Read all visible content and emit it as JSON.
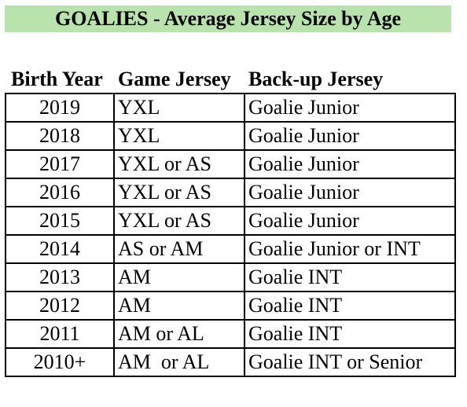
{
  "header": {
    "title": "GOALIES - Average Jersey Size by Age"
  },
  "table": {
    "columns": [
      "Birth Year",
      "Game Jersey",
      "Back-up Jersey"
    ],
    "rows": [
      [
        "2019",
        "YXL",
        "Goalie Junior"
      ],
      [
        "2018",
        "YXL",
        "Goalie Junior"
      ],
      [
        "2017",
        "YXL or AS",
        "Goalie Junior"
      ],
      [
        "2016",
        "YXL or AS",
        "Goalie Junior"
      ],
      [
        "2015",
        "YXL or AS",
        "Goalie Junior"
      ],
      [
        "2014",
        "AS or AM",
        "Goalie Junior or INT"
      ],
      [
        "2013",
        "AM",
        "Goalie INT"
      ],
      [
        "2012",
        "AM",
        "Goalie INT"
      ],
      [
        "2011",
        "AM or AL",
        "Goalie INT"
      ],
      [
        "2010+",
        "AM  or AL",
        "Goalie INT or Senior"
      ]
    ]
  }
}
